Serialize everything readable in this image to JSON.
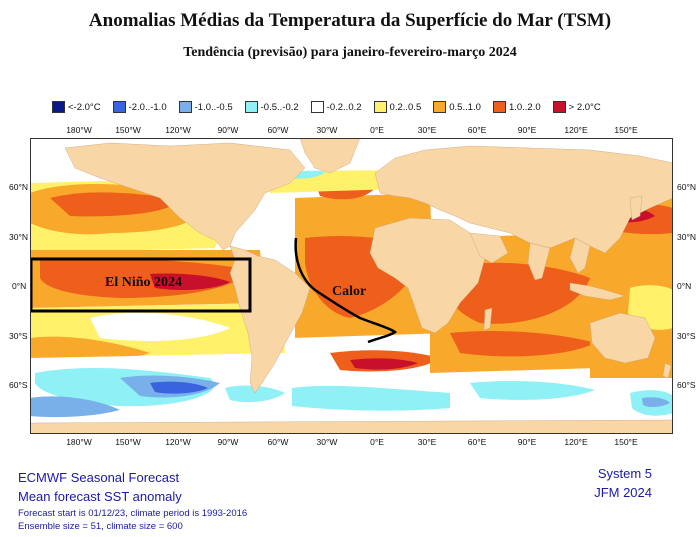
{
  "title": "Anomalias Médias da Temperatura da Superfície do Mar (TSM)",
  "subtitle": "Tendência (previsão) para janeiro-fevereiro-março 2024",
  "legend": [
    {
      "label": "<-2.0°C",
      "color": "#0a1a8c"
    },
    {
      "label": "-2.0..-1.0",
      "color": "#3a63e0"
    },
    {
      "label": "-1.0..-0.5",
      "color": "#7ab0ea"
    },
    {
      "label": "-0.5..-0.2",
      "color": "#8ff0f5"
    },
    {
      "label": "-0.2..0.2",
      "color": "#ffffff"
    },
    {
      "label": "0.2..0.5",
      "color": "#fff16a"
    },
    {
      "label": "0.5..1.0",
      "color": "#f8a92c"
    },
    {
      "label": "1.0..2.0",
      "color": "#ee5f1c"
    },
    {
      "label": "> 2.0°C",
      "color": "#c8102a"
    }
  ],
  "longitude_labels": [
    "180°W",
    "150°W",
    "120°W",
    "90°W",
    "60°W",
    "30°W",
    "0°E",
    "30°E",
    "60°E",
    "90°E",
    "120°E",
    "150°E"
  ],
  "latitude_labels": [
    "60°N",
    "30°N",
    "0°N",
    "30°S",
    "60°S"
  ],
  "annotations": {
    "el_nino": "El Niño 2024",
    "calor": "Calor"
  },
  "colors": {
    "land": "#f9d6a6",
    "ocean_neutral": "#ffffff",
    "box": "#000000"
  },
  "footer": {
    "line1": "ECMWF Seasonal Forecast",
    "line2": "Mean forecast SST anomaly",
    "line3": "Forecast start is 01/12/23, climate period is 1993-2016",
    "line4": "Ensemble size = 51, climate size = 600",
    "system": "System 5",
    "period": "JFM 2024"
  }
}
